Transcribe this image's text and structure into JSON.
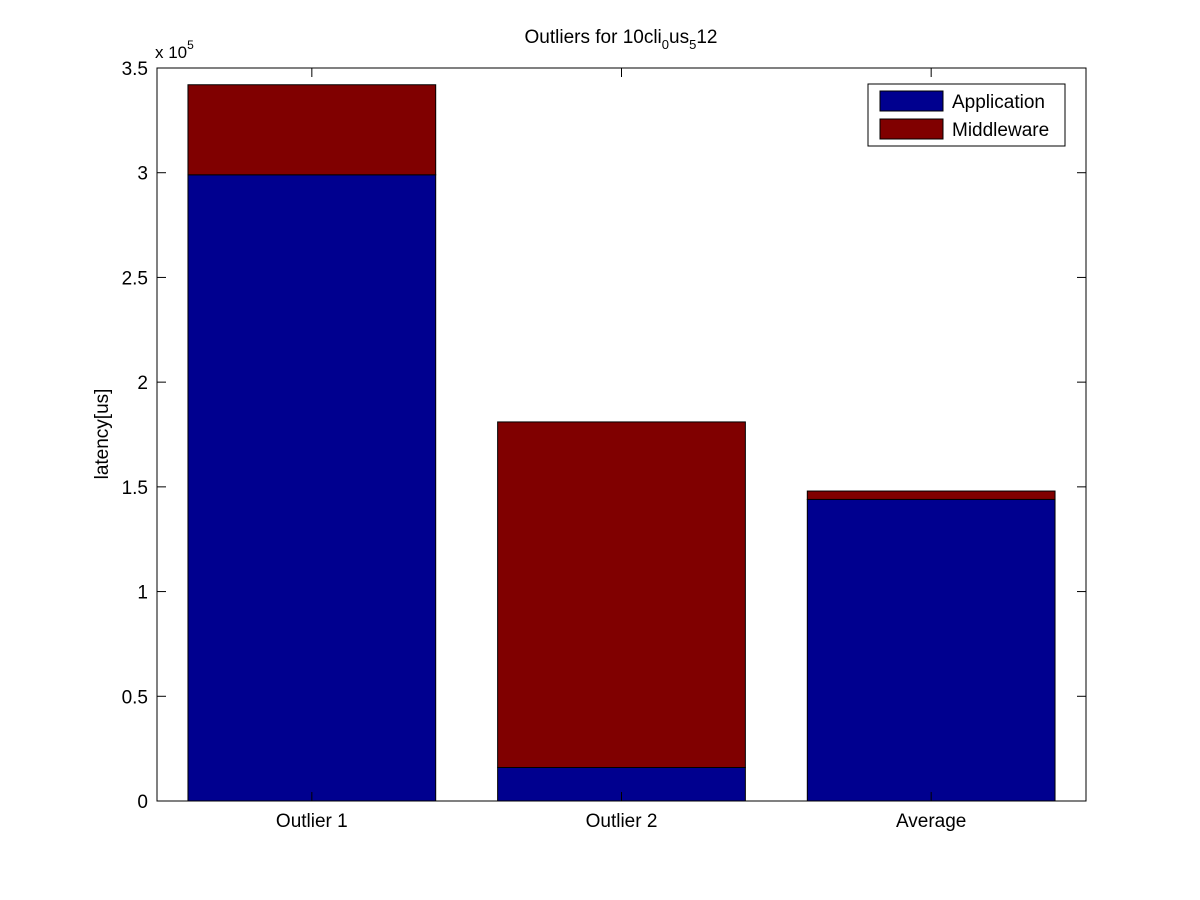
{
  "chart_data": {
    "type": "bar",
    "stacked": true,
    "title": {
      "prefix": "Outliers for 10cli",
      "sub1": "0",
      "mid": "us",
      "sub2": "5",
      "suffix": "12"
    },
    "xlabel": "",
    "ylabel": "latency[us]",
    "y_multiplier": {
      "base": "x 10",
      "exponent": "5"
    },
    "categories": [
      "Outlier 1",
      "Outlier 2",
      "Average"
    ],
    "series": [
      {
        "name": "Application",
        "color": "#00008f",
        "values": [
          299000,
          16000,
          144000
        ]
      },
      {
        "name": "Middleware",
        "color": "#800000",
        "values": [
          43000,
          165000,
          4000
        ]
      }
    ],
    "ylim": [
      0,
      350000
    ],
    "yticks": [
      0,
      50000,
      100000,
      150000,
      200000,
      250000,
      300000,
      350000
    ],
    "ytick_labels": [
      "0",
      "0.5",
      "1",
      "1.5",
      "2",
      "2.5",
      "3",
      "3.5"
    ],
    "grid": false,
    "legend_position": "top-right"
  }
}
